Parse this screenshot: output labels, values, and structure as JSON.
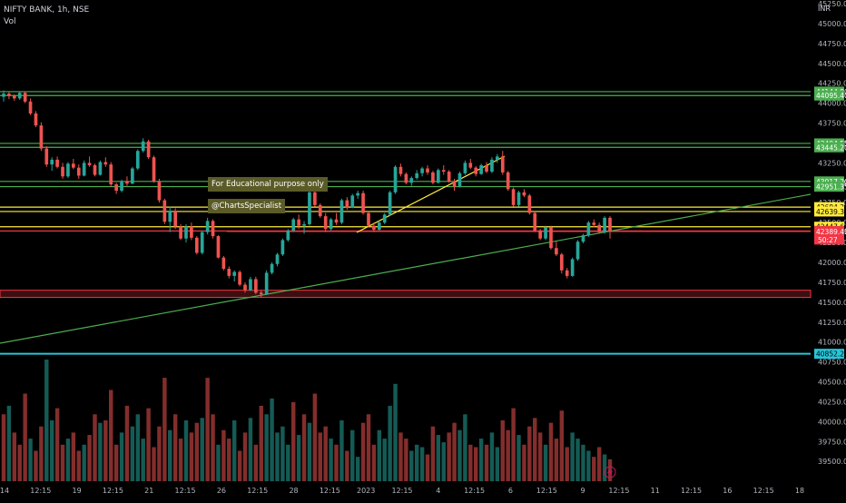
{
  "header": {
    "title": "NIFTY BANK, 1h, NSE",
    "volume_label": "Vol",
    "currency": "INR"
  },
  "notes": {
    "line1": "For Educational purpose only",
    "line2": "@ChartsSpecialist"
  },
  "colors": {
    "up": "#26a69a",
    "down": "#ef5350",
    "green_line": "#4caf50",
    "yellow_line": "#ffeb3b",
    "red_line": "#f23645",
    "cyan_line": "#26c6da",
    "zone": "#f23645"
  },
  "chart_data": {
    "type": "candlestick",
    "symbol": "NIFTY BANK",
    "interval": "1h",
    "exchange": "NSE",
    "y_axis": {
      "range": [
        39400,
        45250
      ],
      "ticks": [
        45250,
        45000,
        44750,
        44500,
        44250,
        44000,
        43750,
        43500,
        43250,
        43000,
        42750,
        42500,
        42250,
        42000,
        41750,
        41500,
        41250,
        41000,
        40750,
        40500,
        40250,
        40000,
        39750,
        39500
      ],
      "tick_labels": [
        "45250.00",
        "45000.00",
        "44750.00",
        "44500.00",
        "44250.00",
        "44000.00",
        "43750.00",
        "43500.00",
        "43250.00",
        "43000.00",
        "42750.00",
        "42500.00",
        "42250.00",
        "42000.00",
        "41750.00",
        "41500.00",
        "41250.00",
        "41000.00",
        "40750.00",
        "40500.00",
        "40250.00",
        "40000.00",
        "39750.00",
        "39500.00"
      ]
    },
    "x_axis": {
      "tick_labels": [
        "14",
        "12:15",
        "19",
        "12:15",
        "21",
        "12:15",
        "26",
        "12:15",
        "28",
        "12:15",
        "2023",
        "12:15",
        "4",
        "12:15",
        "6",
        "12:15",
        "9",
        "12:15",
        "11",
        "12:15",
        "16",
        "12:15",
        "18"
      ]
    },
    "horizontal_levels": [
      {
        "price": 44144.8,
        "label": "44144.80",
        "color": "#4caf50"
      },
      {
        "price": 44095.4,
        "label": "44095.40",
        "color": "#4caf50"
      },
      {
        "price": 43494.55,
        "label": "43494.55",
        "color": "#4caf50"
      },
      {
        "price": 43445.2,
        "label": "43445.20",
        "color": "#4caf50"
      },
      {
        "price": 43017.2,
        "label": "43017.20",
        "color": "#4caf50"
      },
      {
        "price": 42951.35,
        "label": "42951.35",
        "color": "#4caf50"
      },
      {
        "price": 42694.2,
        "label": "42694.20",
        "color": "#ffeb3b"
      },
      {
        "price": 42639.3,
        "label": "42639.30",
        "color": "#ffeb3b"
      },
      {
        "price": 42447.6,
        "label": "42447.60",
        "color": "#ffeb3b"
      },
      {
        "price": 42395.1,
        "label": "42395.10",
        "color": "#f23645"
      },
      {
        "price": 40852.25,
        "label": "40852.25",
        "color": "#26c6da"
      }
    ],
    "last_price": {
      "price": 42389.45,
      "label": "42389.45",
      "countdown": "50:27"
    },
    "support_zone": {
      "from": 41560,
      "to": 41650
    },
    "ohlc": [
      [
        44080,
        44160,
        44020,
        44120
      ],
      [
        44120,
        44140,
        44050,
        44090
      ],
      [
        44090,
        44110,
        44030,
        44060
      ],
      [
        44060,
        44150,
        44040,
        44130
      ],
      [
        44130,
        44150,
        44000,
        44020
      ],
      [
        44020,
        44060,
        43850,
        43870
      ],
      [
        43870,
        43900,
        43700,
        43720
      ],
      [
        43720,
        43760,
        43400,
        43430
      ],
      [
        43430,
        43460,
        43200,
        43230
      ],
      [
        43230,
        43320,
        43150,
        43290
      ],
      [
        43290,
        43330,
        43180,
        43200
      ],
      [
        43200,
        43250,
        43050,
        43080
      ],
      [
        43080,
        43260,
        43060,
        43240
      ],
      [
        43240,
        43300,
        43170,
        43190
      ],
      [
        43190,
        43230,
        43050,
        43090
      ],
      [
        43090,
        43280,
        43080,
        43250
      ],
      [
        43250,
        43330,
        43200,
        43220
      ],
      [
        43220,
        43240,
        43080,
        43100
      ],
      [
        43100,
        43280,
        43090,
        43260
      ],
      [
        43260,
        43320,
        43200,
        43230
      ],
      [
        43230,
        43260,
        42950,
        42980
      ],
      [
        42980,
        43000,
        42860,
        42900
      ],
      [
        42900,
        43040,
        42880,
        43020
      ],
      [
        43020,
        43080,
        42960,
        42990
      ],
      [
        42990,
        43200,
        42980,
        43180
      ],
      [
        43180,
        43420,
        43160,
        43400
      ],
      [
        43400,
        43560,
        43380,
        43520
      ],
      [
        43520,
        43540,
        43300,
        43320
      ],
      [
        43320,
        43340,
        43000,
        43020
      ],
      [
        43020,
        43050,
        42750,
        42780
      ],
      [
        42780,
        42800,
        42480,
        42510
      ],
      [
        42510,
        42700,
        42380,
        42650
      ],
      [
        42650,
        42680,
        42420,
        42450
      ],
      [
        42450,
        42480,
        42280,
        42300
      ],
      [
        42300,
        42480,
        42250,
        42450
      ],
      [
        42450,
        42500,
        42280,
        42310
      ],
      [
        42310,
        42330,
        42100,
        42120
      ],
      [
        42120,
        42400,
        42100,
        42380
      ],
      [
        42380,
        42560,
        42350,
        42520
      ],
      [
        42520,
        42540,
        42300,
        42330
      ],
      [
        42330,
        42340,
        42050,
        42060
      ],
      [
        42060,
        42080,
        41900,
        41920
      ],
      [
        41920,
        41950,
        41800,
        41830
      ],
      [
        41830,
        41900,
        41760,
        41880
      ],
      [
        41880,
        41900,
        41700,
        41720
      ],
      [
        41720,
        41750,
        41620,
        41650
      ],
      [
        41650,
        41820,
        41640,
        41790
      ],
      [
        41790,
        41820,
        41600,
        41620
      ],
      [
        41620,
        41650,
        41560,
        41600
      ],
      [
        41600,
        41900,
        41590,
        41870
      ],
      [
        41870,
        42000,
        41850,
        41980
      ],
      [
        41980,
        42120,
        41950,
        42100
      ],
      [
        42100,
        42300,
        42080,
        42280
      ],
      [
        42280,
        42420,
        42260,
        42400
      ],
      [
        42400,
        42560,
        42380,
        42540
      ],
      [
        42540,
        42600,
        42420,
        42460
      ],
      [
        42460,
        42520,
        42360,
        42480
      ],
      [
        42480,
        42900,
        42460,
        42880
      ],
      [
        42880,
        42920,
        42700,
        42720
      ],
      [
        42720,
        42740,
        42560,
        42580
      ],
      [
        42580,
        42620,
        42380,
        42420
      ],
      [
        42420,
        42560,
        42400,
        42540
      ],
      [
        42540,
        42620,
        42470,
        42500
      ],
      [
        42500,
        42800,
        42480,
        42780
      ],
      [
        42780,
        42820,
        42660,
        42690
      ],
      [
        42690,
        42860,
        42680,
        42840
      ],
      [
        42840,
        42900,
        42800,
        42870
      ],
      [
        42870,
        42900,
        42600,
        42620
      ],
      [
        42620,
        42640,
        42440,
        42460
      ],
      [
        42460,
        42500,
        42380,
        42410
      ],
      [
        42410,
        42520,
        42400,
        42500
      ],
      [
        42500,
        42620,
        42480,
        42600
      ],
      [
        42600,
        42900,
        42580,
        42880
      ],
      [
        42880,
        43220,
        42860,
        43200
      ],
      [
        43200,
        43240,
        43080,
        43110
      ],
      [
        43110,
        43130,
        42980,
        43000
      ],
      [
        43000,
        43080,
        42960,
        43060
      ],
      [
        43060,
        43160,
        43040,
        43120
      ],
      [
        43120,
        43200,
        43080,
        43180
      ],
      [
        43180,
        43220,
        43100,
        43130
      ],
      [
        43130,
        43150,
        42980,
        43000
      ],
      [
        43000,
        43180,
        42990,
        43160
      ],
      [
        43160,
        43220,
        43100,
        43140
      ],
      [
        43140,
        43160,
        43000,
        43020
      ],
      [
        43020,
        43050,
        42900,
        42950
      ],
      [
        42950,
        43140,
        42940,
        43120
      ],
      [
        43120,
        43280,
        43100,
        43250
      ],
      [
        43250,
        43300,
        43170,
        43190
      ],
      [
        43190,
        43210,
        43080,
        43110
      ],
      [
        43110,
        43240,
        43100,
        43220
      ],
      [
        43220,
        43260,
        43120,
        43140
      ],
      [
        43140,
        43320,
        43120,
        43290
      ],
      [
        43290,
        43360,
        43250,
        43330
      ],
      [
        43330,
        43400,
        43100,
        43130
      ],
      [
        43130,
        43150,
        42900,
        42920
      ],
      [
        42920,
        42940,
        42700,
        42720
      ],
      [
        42720,
        42900,
        42700,
        42880
      ],
      [
        42880,
        42920,
        42820,
        42840
      ],
      [
        42840,
        42860,
        42600,
        42620
      ],
      [
        42620,
        42640,
        42380,
        42400
      ],
      [
        42400,
        42420,
        42280,
        42300
      ],
      [
        42300,
        42460,
        42280,
        42440
      ],
      [
        42440,
        42460,
        42160,
        42180
      ],
      [
        42180,
        42260,
        42080,
        42100
      ],
      [
        42100,
        42120,
        41860,
        41900
      ],
      [
        41900,
        41930,
        41800,
        41830
      ],
      [
        41830,
        42060,
        41820,
        42040
      ],
      [
        42040,
        42280,
        42020,
        42260
      ],
      [
        42260,
        42360,
        42240,
        42340
      ],
      [
        42340,
        42520,
        42320,
        42500
      ],
      [
        42500,
        42540,
        42440,
        42470
      ],
      [
        42470,
        42500,
        42360,
        42380
      ],
      [
        42380,
        42580,
        42360,
        42560
      ],
      [
        42560,
        42580,
        42300,
        42389.45
      ]
    ],
    "volume": [
      {
        "v": 0.55,
        "up": false
      },
      {
        "v": 0.62,
        "up": true
      },
      {
        "v": 0.4,
        "up": false
      },
      {
        "v": 0.3,
        "up": false
      },
      {
        "v": 0.72,
        "up": false
      },
      {
        "v": 0.35,
        "up": true
      },
      {
        "v": 0.25,
        "up": false
      },
      {
        "v": 0.45,
        "up": false
      },
      {
        "v": 1.0,
        "up": true
      },
      {
        "v": 0.5,
        "up": true
      },
      {
        "v": 0.6,
        "up": false
      },
      {
        "v": 0.3,
        "up": false
      },
      {
        "v": 0.35,
        "up": true
      },
      {
        "v": 0.4,
        "up": false
      },
      {
        "v": 0.25,
        "up": false
      },
      {
        "v": 0.3,
        "up": true
      },
      {
        "v": 0.38,
        "up": false
      },
      {
        "v": 0.55,
        "up": false
      },
      {
        "v": 0.48,
        "up": true
      },
      {
        "v": 0.5,
        "up": false
      },
      {
        "v": 0.75,
        "up": false
      },
      {
        "v": 0.3,
        "up": false
      },
      {
        "v": 0.4,
        "up": true
      },
      {
        "v": 0.62,
        "up": false
      },
      {
        "v": 0.45,
        "up": true
      },
      {
        "v": 0.55,
        "up": true
      },
      {
        "v": 0.35,
        "up": true
      },
      {
        "v": 0.6,
        "up": false
      },
      {
        "v": 0.28,
        "up": false
      },
      {
        "v": 0.45,
        "up": false
      },
      {
        "v": 0.85,
        "up": false
      },
      {
        "v": 0.42,
        "up": true
      },
      {
        "v": 0.55,
        "up": false
      },
      {
        "v": 0.35,
        "up": false
      },
      {
        "v": 0.5,
        "up": true
      },
      {
        "v": 0.4,
        "up": false
      },
      {
        "v": 0.48,
        "up": false
      },
      {
        "v": 0.52,
        "up": true
      },
      {
        "v": 0.85,
        "up": false
      },
      {
        "v": 0.55,
        "up": false
      },
      {
        "v": 0.3,
        "up": true
      },
      {
        "v": 0.42,
        "up": false
      },
      {
        "v": 0.35,
        "up": false
      },
      {
        "v": 0.5,
        "up": true
      },
      {
        "v": 0.25,
        "up": false
      },
      {
        "v": 0.4,
        "up": false
      },
      {
        "v": 0.52,
        "up": true
      },
      {
        "v": 0.3,
        "up": false
      },
      {
        "v": 0.62,
        "up": false
      },
      {
        "v": 0.55,
        "up": true
      },
      {
        "v": 0.68,
        "up": true
      },
      {
        "v": 0.4,
        "up": true
      },
      {
        "v": 0.45,
        "up": true
      },
      {
        "v": 0.3,
        "up": true
      },
      {
        "v": 0.65,
        "up": false
      },
      {
        "v": 0.38,
        "up": true
      },
      {
        "v": 0.55,
        "up": false
      },
      {
        "v": 0.48,
        "up": true
      },
      {
        "v": 0.72,
        "up": false
      },
      {
        "v": 0.4,
        "up": false
      },
      {
        "v": 0.45,
        "up": false
      },
      {
        "v": 0.35,
        "up": true
      },
      {
        "v": 0.3,
        "up": false
      },
      {
        "v": 0.5,
        "up": true
      },
      {
        "v": 0.25,
        "up": false
      },
      {
        "v": 0.42,
        "up": true
      },
      {
        "v": 0.2,
        "up": true
      },
      {
        "v": 0.48,
        "up": false
      },
      {
        "v": 0.55,
        "up": false
      },
      {
        "v": 0.3,
        "up": false
      },
      {
        "v": 0.42,
        "up": true
      },
      {
        "v": 0.35,
        "up": true
      },
      {
        "v": 0.62,
        "up": true
      },
      {
        "v": 0.8,
        "up": true
      },
      {
        "v": 0.4,
        "up": false
      },
      {
        "v": 0.35,
        "up": false
      },
      {
        "v": 0.25,
        "up": true
      },
      {
        "v": 0.3,
        "up": true
      },
      {
        "v": 0.28,
        "up": true
      },
      {
        "v": 0.22,
        "up": false
      },
      {
        "v": 0.45,
        "up": false
      },
      {
        "v": 0.38,
        "up": true
      },
      {
        "v": 0.32,
        "up": true
      },
      {
        "v": 0.4,
        "up": false
      },
      {
        "v": 0.48,
        "up": false
      },
      {
        "v": 0.42,
        "up": true
      },
      {
        "v": 0.55,
        "up": true
      },
      {
        "v": 0.3,
        "up": false
      },
      {
        "v": 0.28,
        "up": false
      },
      {
        "v": 0.35,
        "up": true
      },
      {
        "v": 0.3,
        "up": false
      },
      {
        "v": 0.4,
        "up": true
      },
      {
        "v": 0.28,
        "up": true
      },
      {
        "v": 0.5,
        "up": false
      },
      {
        "v": 0.42,
        "up": false
      },
      {
        "v": 0.6,
        "up": false
      },
      {
        "v": 0.38,
        "up": true
      },
      {
        "v": 0.3,
        "up": false
      },
      {
        "v": 0.45,
        "up": false
      },
      {
        "v": 0.52,
        "up": false
      },
      {
        "v": 0.4,
        "up": false
      },
      {
        "v": 0.3,
        "up": true
      },
      {
        "v": 0.48,
        "up": false
      },
      {
        "v": 0.35,
        "up": false
      },
      {
        "v": 0.58,
        "up": false
      },
      {
        "v": 0.28,
        "up": false
      },
      {
        "v": 0.4,
        "up": true
      },
      {
        "v": 0.35,
        "up": true
      },
      {
        "v": 0.3,
        "up": true
      },
      {
        "v": 0.25,
        "up": true
      },
      {
        "v": 0.2,
        "up": false
      },
      {
        "v": 0.28,
        "up": false
      },
      {
        "v": 0.22,
        "up": true
      },
      {
        "v": 0.18,
        "up": false
      }
    ]
  }
}
